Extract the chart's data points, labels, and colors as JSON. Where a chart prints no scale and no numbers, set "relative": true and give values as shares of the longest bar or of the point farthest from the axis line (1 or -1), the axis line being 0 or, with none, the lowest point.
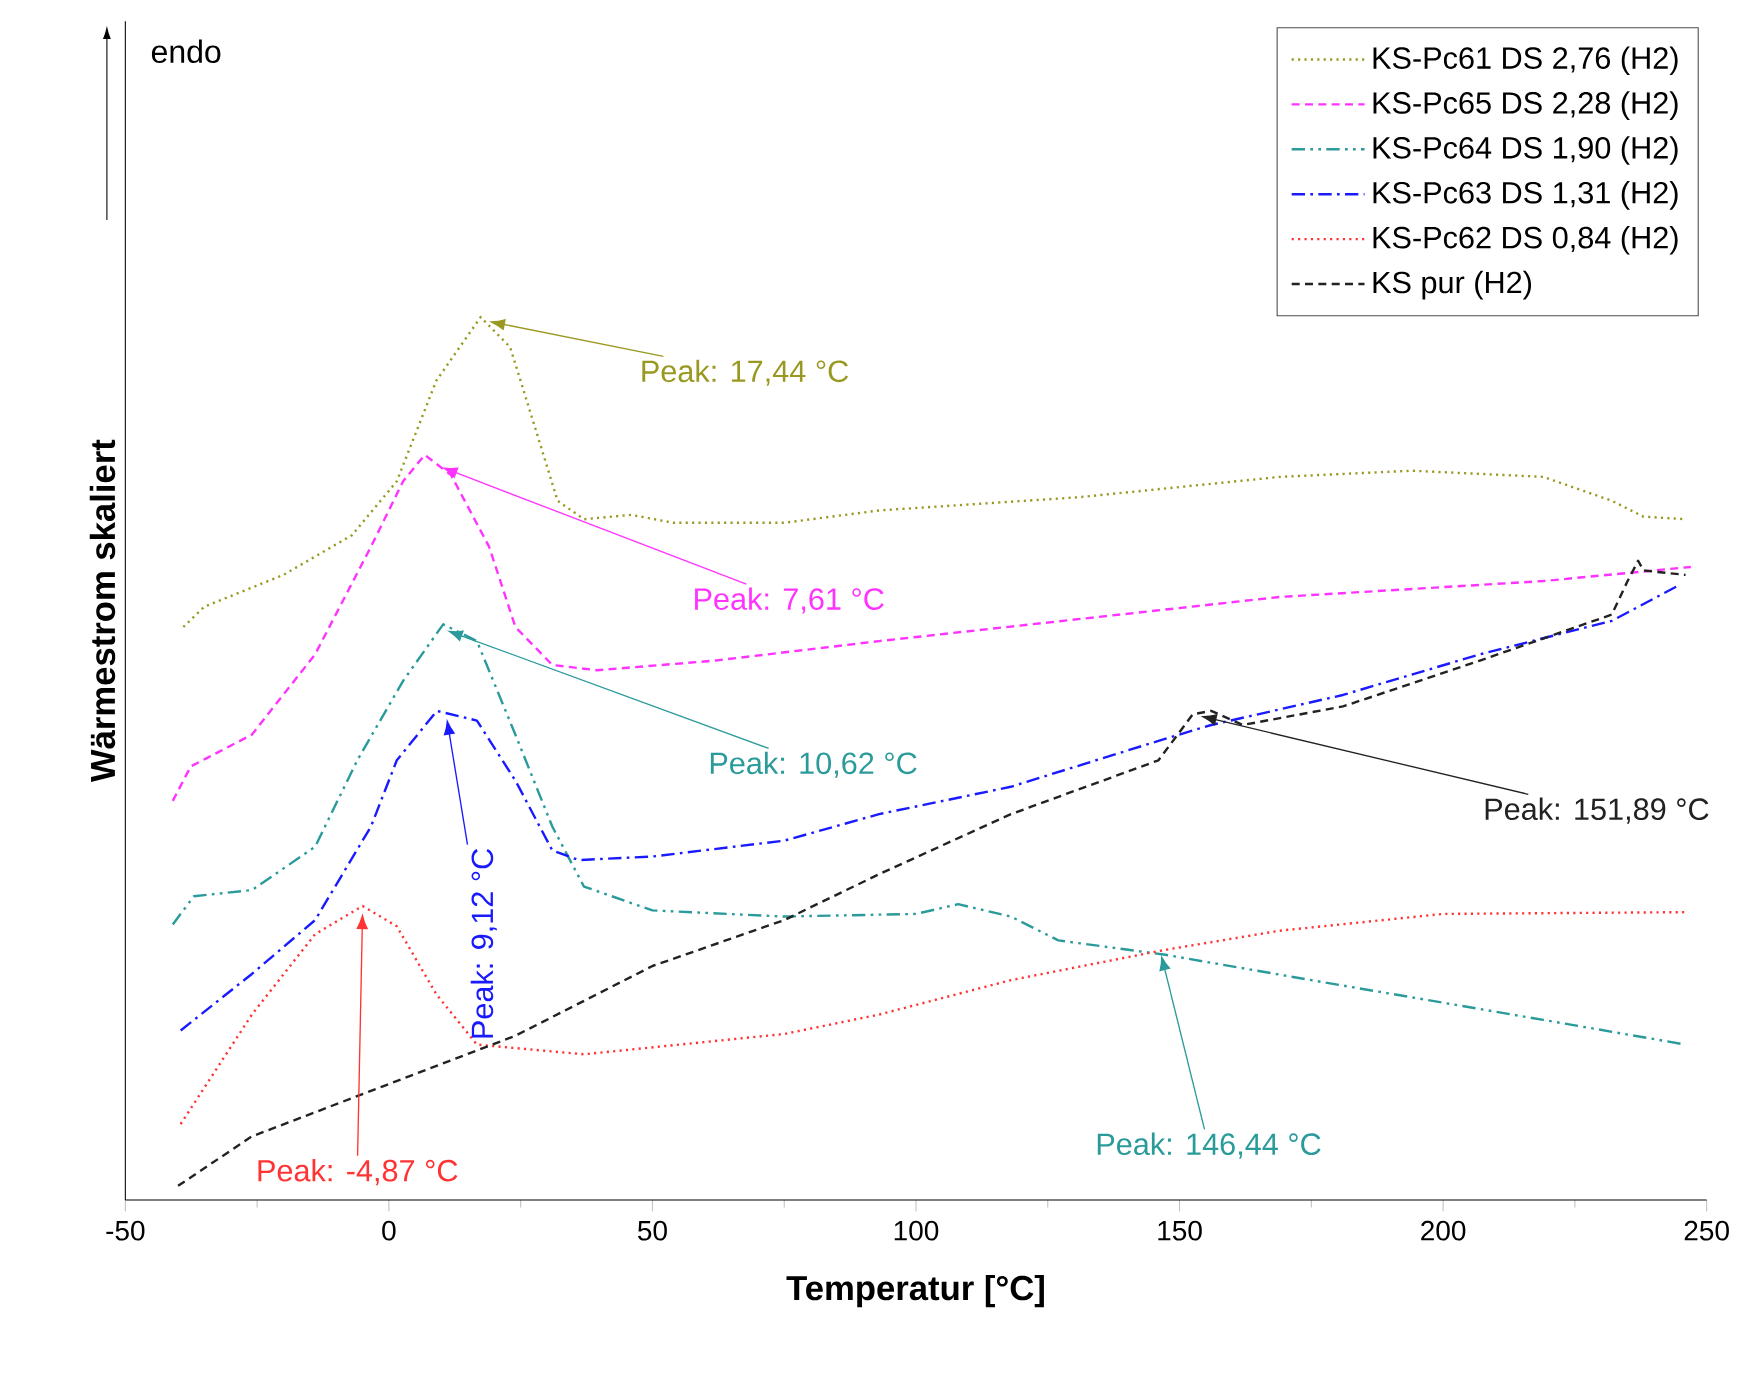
{
  "chart_data": {
    "type": "line",
    "relative": true,
    "xlabel": "Temperatur [°C]",
    "ylabel": "Wärmestrom skaliert",
    "xlim": [
      -50,
      250
    ],
    "xticks": [
      -50,
      0,
      50,
      100,
      150,
      200,
      250
    ],
    "legend": "top right",
    "series": [
      {
        "name": "KS-Pc61 DS 2,76 (H2)",
        "color": "#999922",
        "line_style": "dotted",
        "x": [
          -39,
          -35,
          -20,
          -7,
          1.5,
          9,
          17.4,
          23,
          27,
          32,
          37,
          46,
          54,
          75,
          93,
          131,
          169,
          194,
          219,
          232,
          238,
          246
        ],
        "values": [
          0.649,
          0.672,
          0.708,
          0.753,
          0.814,
          0.928,
          1.0,
          0.966,
          0.889,
          0.792,
          0.771,
          0.776,
          0.767,
          0.767,
          0.781,
          0.796,
          0.819,
          0.826,
          0.819,
          0.792,
          0.774,
          0.771
        ]
      },
      {
        "name": "KS-Pc65 DS 2,28 (H2)",
        "color": "#ff33ff",
        "line_style": "dashed",
        "x": [
          -41,
          -37.6,
          -26,
          -14,
          -3.4,
          2.7,
          6.8,
          11.8,
          19,
          24,
          31,
          39.5,
          62,
          93,
          169,
          219,
          247
        ],
        "values": [
          0.452,
          0.491,
          0.527,
          0.618,
          0.74,
          0.814,
          0.844,
          0.821,
          0.74,
          0.649,
          0.606,
          0.6,
          0.611,
          0.633,
          0.683,
          0.701,
          0.717
        ]
      },
      {
        "name": "KS-Pc64 DS 1,90 (H2)",
        "color": "#2a9a9a",
        "line_style": "dashdotdot",
        "x": [
          -41,
          -37,
          -26,
          -14,
          -6,
          2.7,
          10.3,
          16.7,
          24,
          31,
          37,
          50,
          75,
          100,
          108,
          118,
          127,
          147,
          175,
          219,
          246
        ],
        "values": [
          0.312,
          0.344,
          0.351,
          0.4,
          0.498,
          0.588,
          0.652,
          0.633,
          0.527,
          0.423,
          0.355,
          0.328,
          0.321,
          0.324,
          0.335,
          0.321,
          0.294,
          0.278,
          0.249,
          0.204,
          0.176
        ]
      },
      {
        "name": "KS-Pc63 DS 1,31 (H2)",
        "color": "#1a1aff",
        "line_style": "dashdot",
        "x": [
          -39.5,
          -26,
          -14,
          -3.4,
          1.5,
          9.1,
          16.7,
          24,
          31,
          36,
          50,
          75,
          93,
          118,
          146,
          156,
          181,
          207,
          232,
          245
        ],
        "values": [
          0.192,
          0.256,
          0.317,
          0.423,
          0.498,
          0.554,
          0.543,
          0.475,
          0.396,
          0.385,
          0.389,
          0.407,
          0.437,
          0.468,
          0.52,
          0.538,
          0.572,
          0.618,
          0.656,
          0.697
        ]
      },
      {
        "name": "KS-Pc62 DS 0,84 (H2)",
        "color": "#ff3333",
        "line_style": "dotted",
        "x": [
          -39.5,
          -26,
          -14,
          -5,
          1.5,
          9,
          16.7,
          37,
          75,
          93,
          118,
          147,
          169,
          200,
          246
        ],
        "values": [
          0.086,
          0.21,
          0.301,
          0.333,
          0.31,
          0.233,
          0.176,
          0.165,
          0.188,
          0.21,
          0.249,
          0.283,
          0.305,
          0.324,
          0.326
        ]
      },
      {
        "name": "KS pur (H2)",
        "color": "#222222",
        "line_style": "dashed",
        "x": [
          -40,
          -26,
          -1,
          24,
          50,
          75,
          93,
          118,
          146,
          152.5,
          156,
          162,
          181,
          207,
          232,
          235,
          237,
          238,
          246
        ],
        "values": [
          0.016,
          0.072,
          0.129,
          0.186,
          0.265,
          0.317,
          0.369,
          0.437,
          0.498,
          0.55,
          0.554,
          0.538,
          0.559,
          0.611,
          0.663,
          0.701,
          0.724,
          0.713,
          0.708
        ]
      }
    ],
    "annotations": [
      "Peak: 17,44 °C",
      "Peak: 7,61 °C",
      "Peak: 10,62 °C",
      "Peak: 9,12 °C",
      "Peak: 151,89 °C",
      "Peak: -4,87 °C",
      "Peak: 146,44 °C",
      "endo"
    ]
  }
}
